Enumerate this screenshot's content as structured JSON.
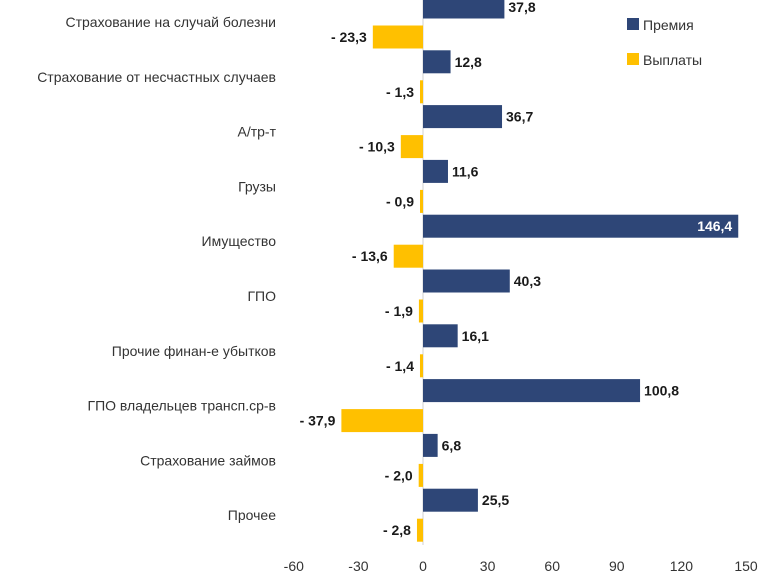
{
  "chart_data": {
    "type": "bar",
    "orientation": "horizontal",
    "categories": [
      "Страхование на случай болезни",
      "Страхование от несчастных случаев",
      "А/тр-т",
      "Грузы",
      "Имущество",
      "ГПО",
      "Прочие финан-е убытков",
      "ГПО владельцев трансп.ср-в",
      "Страхование займов",
      "Прочее"
    ],
    "series": [
      {
        "name": "Премия",
        "color": "#2e4677",
        "values": [
          37.8,
          12.8,
          36.7,
          11.6,
          146.4,
          40.3,
          16.1,
          100.8,
          6.8,
          25.5
        ],
        "labels": [
          "37,8",
          "12,8",
          "36,7",
          "11,6",
          "146,4",
          "40,3",
          "16,1",
          "100,8",
          "6,8",
          "25,5"
        ]
      },
      {
        "name": "Выплаты",
        "color": "#ffc000",
        "values": [
          -23.3,
          -1.3,
          -10.3,
          -0.9,
          -13.6,
          -1.9,
          -1.4,
          -37.9,
          -2.0,
          -2.8
        ],
        "labels": [
          "- 23,3",
          "- 1,3",
          "- 10,3",
          "- 0,9",
          "- 13,6",
          "- 1,9",
          "- 1,4",
          "- 37,9",
          "- 2,0",
          "- 2,8"
        ]
      }
    ],
    "xlim": [
      -60,
      150
    ],
    "xticks": [
      -60,
      -30,
      0,
      30,
      60,
      90,
      120,
      150
    ],
    "grid": false,
    "legend_position": "top-right"
  }
}
